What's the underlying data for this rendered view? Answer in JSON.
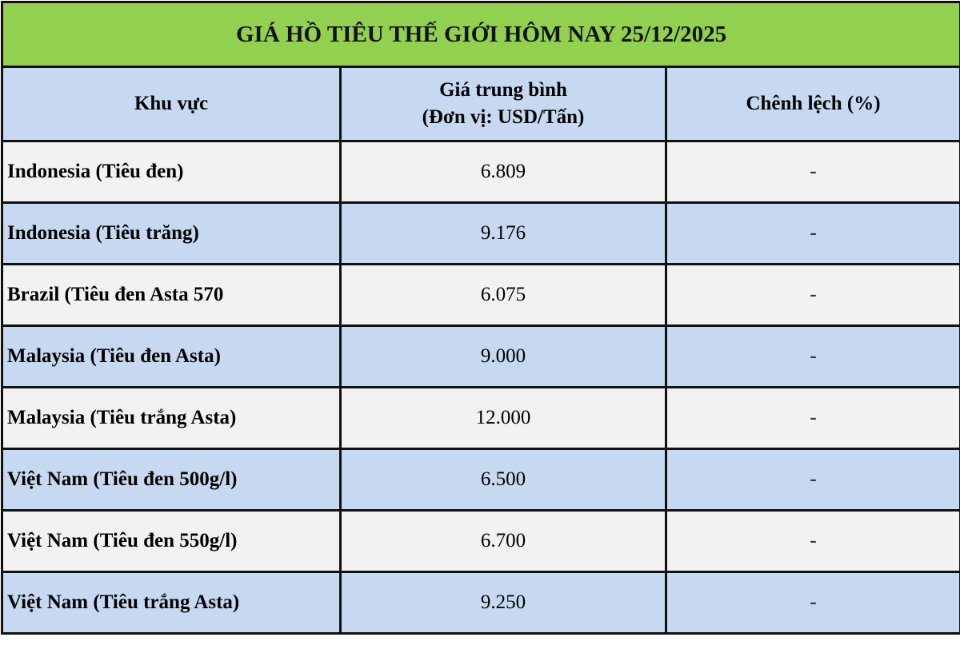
{
  "title": "GIÁ HỒ TIÊU THẾ GIỚI HÔM NAY 25/12/2025",
  "headers": {
    "region": "Khu vực",
    "price_line1": "Giá trung bình",
    "price_line2": "(Đơn vị: USD/Tấn)",
    "change": "Chênh lệch (%)"
  },
  "colors": {
    "title_bg": "#92d050",
    "header_bg": "#c6d9f0",
    "row_alt_bg": "#f2f2f2",
    "dash": "#1f3864"
  },
  "rows": [
    {
      "region": "Indonesia (Tiêu đen)",
      "price": "6.809",
      "change": "-"
    },
    {
      "region": "Indonesia (Tiêu trăng)",
      "price": "9.176",
      "change": "-"
    },
    {
      "region": "Brazil (Tiêu đen Asta 570",
      "price": "6.075",
      "change": "-"
    },
    {
      "region": "Malaysia (Tiêu đen Asta)",
      "price": "9.000",
      "change": "-"
    },
    {
      "region": "Malaysia (Tiêu trắng Asta)",
      "price": "12.000",
      "change": "-"
    },
    {
      "region": "Việt Nam (Tiêu đen 500g/l)",
      "price": "6.500",
      "change": "-"
    },
    {
      "region": "Việt Nam (Tiêu đen 550g/l)",
      "price": "6.700",
      "change": "-"
    },
    {
      "region": "Việt Nam (Tiêu trắng Asta)",
      "price": "9.250",
      "change": "-"
    }
  ]
}
